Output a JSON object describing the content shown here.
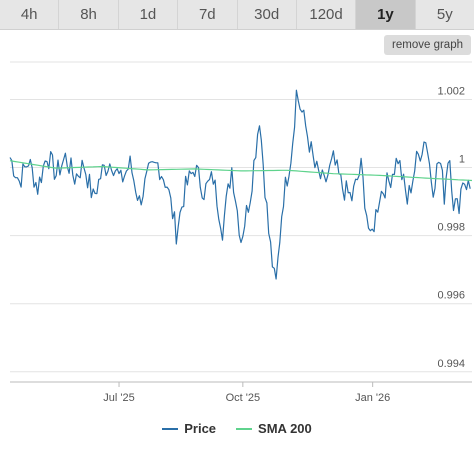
{
  "tabs": [
    {
      "label": "4h",
      "active": false
    },
    {
      "label": "8h",
      "active": false
    },
    {
      "label": "1d",
      "active": false
    },
    {
      "label": "7d",
      "active": false
    },
    {
      "label": "30d",
      "active": false
    },
    {
      "label": "120d",
      "active": false
    },
    {
      "label": "1y",
      "active": true
    },
    {
      "label": "5y",
      "active": false
    }
  ],
  "remove_button": "remove graph",
  "colors": {
    "price": "#2a6fa8",
    "sma": "#5fd38d",
    "grid": "#e3e3e3",
    "axis": "#555555"
  },
  "chart_data": {
    "type": "line",
    "xlabel": "",
    "ylabel": "",
    "ylim": [
      0.9937,
      1.0031
    ],
    "y_ticks": [
      "1.002",
      "1",
      "0.998",
      "0.996",
      "0.994"
    ],
    "x_ticks": [
      "Jul '25",
      "Oct '25",
      "Jan '26"
    ],
    "legend_position": "bottom-center",
    "grid": true,
    "series": [
      {
        "name": "Price",
        "anchors": [
          [
            0.0,
            1.0003
          ],
          [
            2.0,
            0.9996
          ],
          [
            4.0,
            1.0002
          ],
          [
            6.0,
            0.9994
          ],
          [
            8.0,
            1.0004
          ],
          [
            10.0,
            0.9998
          ],
          [
            12.0,
            1.0003
          ],
          [
            14.0,
            0.9997
          ],
          [
            16.0,
            1.0001
          ],
          [
            18.0,
            0.9991
          ],
          [
            20.0,
            0.9999
          ],
          [
            22.0,
            1.0002
          ],
          [
            24.0,
            0.9996
          ],
          [
            26.0,
            1.0001
          ],
          [
            28.0,
            0.999
          ],
          [
            30.0,
            0.9998
          ],
          [
            32.0,
            1.0001
          ],
          [
            34.0,
            0.9995
          ],
          [
            36.0,
            0.9981
          ],
          [
            38.0,
            0.9994
          ],
          [
            40.0,
            1.0
          ],
          [
            42.0,
            0.9993
          ],
          [
            44.0,
            0.9997
          ],
          [
            46.0,
            0.9982
          ],
          [
            48.0,
            1.0
          ],
          [
            50.0,
            0.9979
          ],
          [
            52.0,
            0.9992
          ],
          [
            54.0,
            1.0015
          ],
          [
            56.0,
            0.9981
          ],
          [
            57.5,
            0.9964
          ],
          [
            59.0,
            0.999
          ],
          [
            61.0,
            1.0005
          ],
          [
            62.0,
            1.0022
          ],
          [
            64.0,
            1.0012
          ],
          [
            66.0,
            1.0
          ],
          [
            68.0,
            0.9995
          ],
          [
            70.0,
            1.0002
          ],
          [
            72.0,
            0.9994
          ],
          [
            74.0,
            0.9991
          ],
          [
            76.0,
            1.0
          ],
          [
            78.0,
            0.9978
          ],
          [
            80.0,
            0.9992
          ],
          [
            82.0,
            0.9996
          ],
          [
            84.0,
            1.0003
          ],
          [
            86.0,
            0.999
          ],
          [
            88.0,
            1.0002
          ],
          [
            90.0,
            1.0009
          ],
          [
            91.5,
            0.9994
          ],
          [
            93.0,
            1.0003
          ],
          [
            94.0,
            0.9992
          ],
          [
            95.0,
            1.0006
          ],
          [
            96.0,
            0.999
          ],
          [
            97.0,
            0.9988
          ],
          [
            98.0,
            0.9997
          ],
          [
            100.0,
            0.9993
          ]
        ]
      },
      {
        "name": "SMA 200",
        "anchors": [
          [
            0.0,
            1.0002
          ],
          [
            10.0,
            0.99998
          ],
          [
            20.0,
            1.00003
          ],
          [
            30.0,
            0.99993
          ],
          [
            40.0,
            0.99996
          ],
          [
            50.0,
            0.9999
          ],
          [
            60.0,
            0.99992
          ],
          [
            70.0,
            0.99982
          ],
          [
            80.0,
            0.99977
          ],
          [
            90.0,
            0.99969
          ],
          [
            100.0,
            0.99962
          ]
        ]
      }
    ]
  }
}
